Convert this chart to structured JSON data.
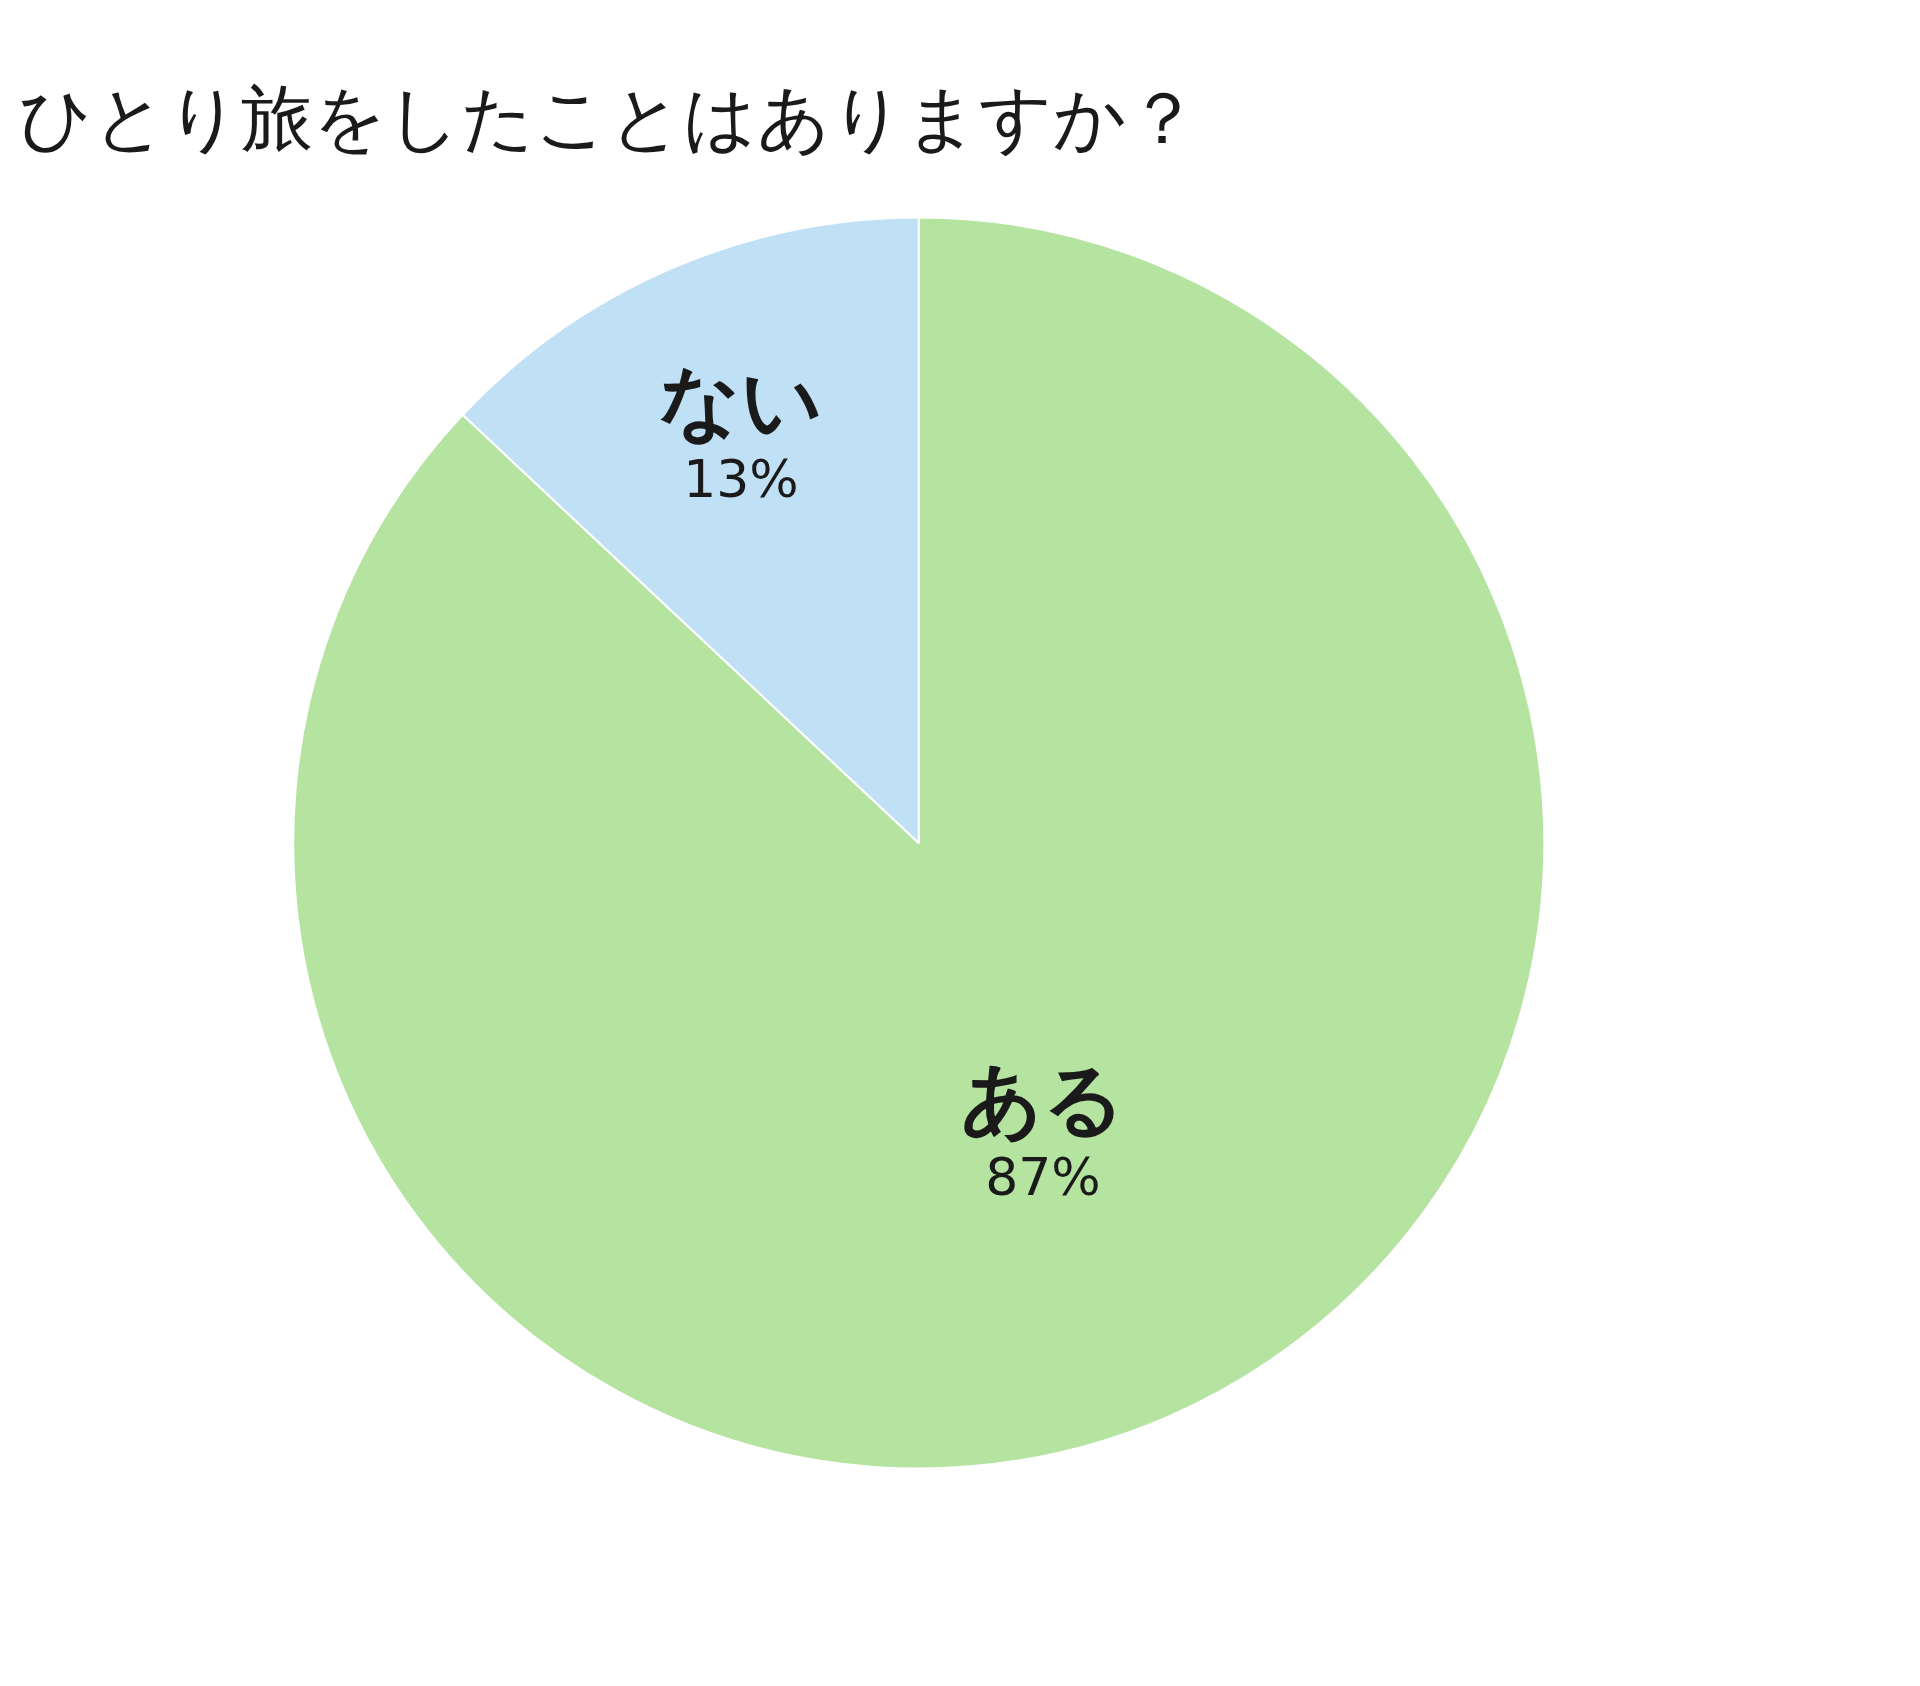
{
  "chart_data": {
    "type": "pie",
    "title": "ひとり旅をしたことはありますか？",
    "categories": [
      "ある",
      "ない"
    ],
    "values": [
      87,
      13
    ],
    "value_labels": [
      "87%",
      "13%"
    ],
    "colors": [
      "#b5e3a0",
      "#c0e0f5"
    ],
    "legend": false
  }
}
